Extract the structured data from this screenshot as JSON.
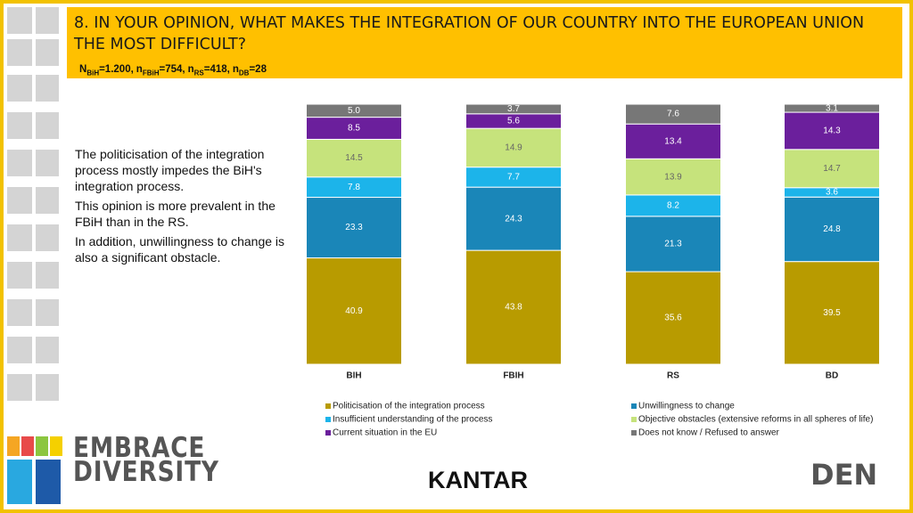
{
  "chart_data": {
    "type": "stacked_bar",
    "title": "8. IN YOUR OPINION, WHAT MAKES THE INTEGRATION OF OUR COUNTRY INTO THE EUROPEAN UNION THE MOST DIFFICULT?",
    "sample_sizes": [
      {
        "symbol": "N",
        "subscript": "BiH",
        "value": "=1.200,"
      },
      {
        "symbol": "n",
        "subscript": "FBiH",
        "value": "=754,"
      },
      {
        "symbol": "n",
        "subscript": "RS",
        "value": "=418,"
      },
      {
        "symbol": "n",
        "subscript": "DB",
        "value": "=28"
      }
    ],
    "categories": [
      "BIH",
      "FBIH",
      "RS",
      "BD"
    ],
    "series": [
      {
        "name": "Politicisation of the integration process",
        "color": "#b89b00",
        "values": [
          40.9,
          43.8,
          35.6,
          39.5
        ]
      },
      {
        "name": "Unwillingness to change",
        "color": "#1a86b8",
        "values": [
          23.3,
          24.3,
          21.3,
          24.8
        ]
      },
      {
        "name": "Insufficient understanding of the process",
        "color": "#1cb4ea",
        "values": [
          7.8,
          7.7,
          8.2,
          3.6
        ]
      },
      {
        "name": "Objective obstacles (extensive reforms in all spheres of life)",
        "color": "#c6e37c",
        "values": [
          14.5,
          14.9,
          13.9,
          14.7
        ]
      },
      {
        "name": "Current situation in the EU",
        "color": "#6b1f9c",
        "values": [
          8.5,
          5.6,
          13.4,
          14.3
        ]
      },
      {
        "name": "Does not know / Refused to answer",
        "color": "#777777",
        "values": [
          5.0,
          3.7,
          7.6,
          3.1
        ],
        "value_labels": [
          "5.0",
          "3.7",
          "7.6",
          "3.1"
        ]
      }
    ]
  },
  "notes": [
    "The politicisation of the integration process mostly impedes the BiH's integration process.",
    "This opinion is more prevalent in the FBiH than in the RS.",
    "In addition, unwillingness to change is also a significant obstacle."
  ],
  "logos": [
    [
      "EMBRACE",
      "DIVERSITY"
    ],
    "KANTAR",
    "DEN"
  ]
}
